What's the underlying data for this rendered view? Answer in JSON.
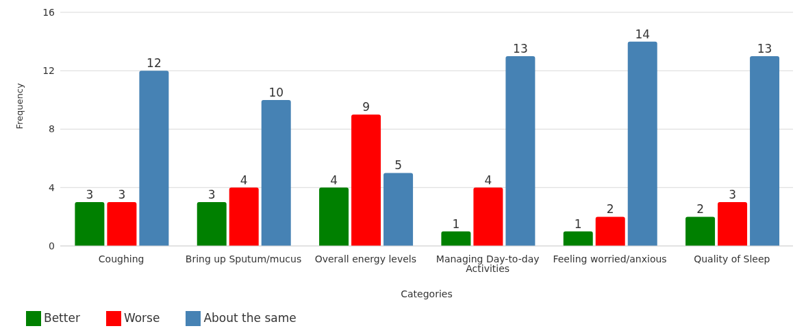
{
  "chart_data": {
    "type": "bar",
    "xlabel": "Categories",
    "ylabel": "Frequency",
    "categories": [
      "Coughing",
      "Bring up Sputum/mucus",
      "Overall energy levels",
      "Managing Day-to-day Activities",
      "Feeling worried/anxious",
      "Quality of Sleep"
    ],
    "series": [
      {
        "name": "Better",
        "color": "#008000",
        "values": [
          3,
          3,
          4,
          1,
          1,
          2
        ]
      },
      {
        "name": "Worse",
        "color": "#ff0000",
        "values": [
          3,
          4,
          9,
          4,
          2,
          3
        ]
      },
      {
        "name": "About the same",
        "color": "#4682b4",
        "values": [
          12,
          10,
          5,
          13,
          14,
          13
        ]
      }
    ],
    "ylim": [
      0,
      16
    ],
    "yticks": [
      0,
      4,
      8,
      12,
      16
    ],
    "grid": "y",
    "legend": "bottom left",
    "data_labels": true
  }
}
